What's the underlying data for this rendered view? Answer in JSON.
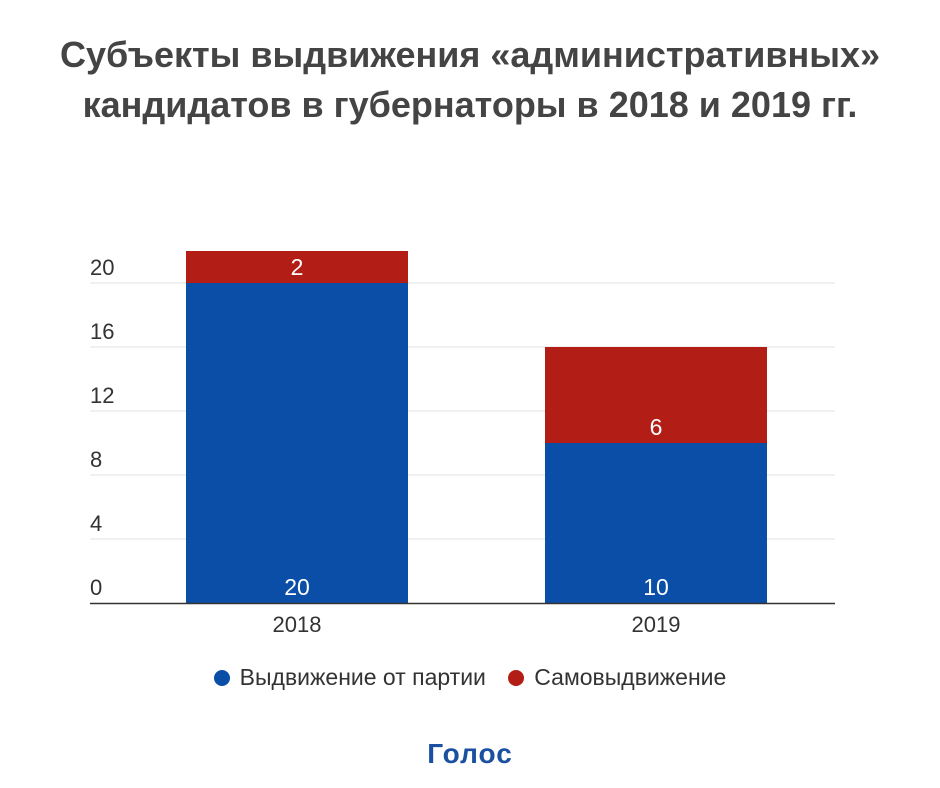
{
  "title": {
    "line1": "Субъекты выдвижения «административных»",
    "line2": "кандидатов в губернаторы в 2018 и 2019 гг."
  },
  "colors": {
    "party": "#0a4ea8",
    "self": "#b21e15",
    "grid": "#e0e0e0",
    "axis": "#333333"
  },
  "chart_data": {
    "type": "bar",
    "stacked": true,
    "categories": [
      "2018",
      "2019"
    ],
    "series": [
      {
        "name": "Выдвижение от партии",
        "values": [
          20,
          10
        ],
        "color": "#0a4ea8"
      },
      {
        "name": "Самовыдвижение",
        "values": [
          2,
          6
        ],
        "color": "#b21e15"
      }
    ],
    "yticks": [
      0,
      4,
      8,
      12,
      16,
      20
    ],
    "ylim": [
      0,
      22
    ],
    "grid": true,
    "legend_position": "bottom"
  },
  "logo": "Голос"
}
